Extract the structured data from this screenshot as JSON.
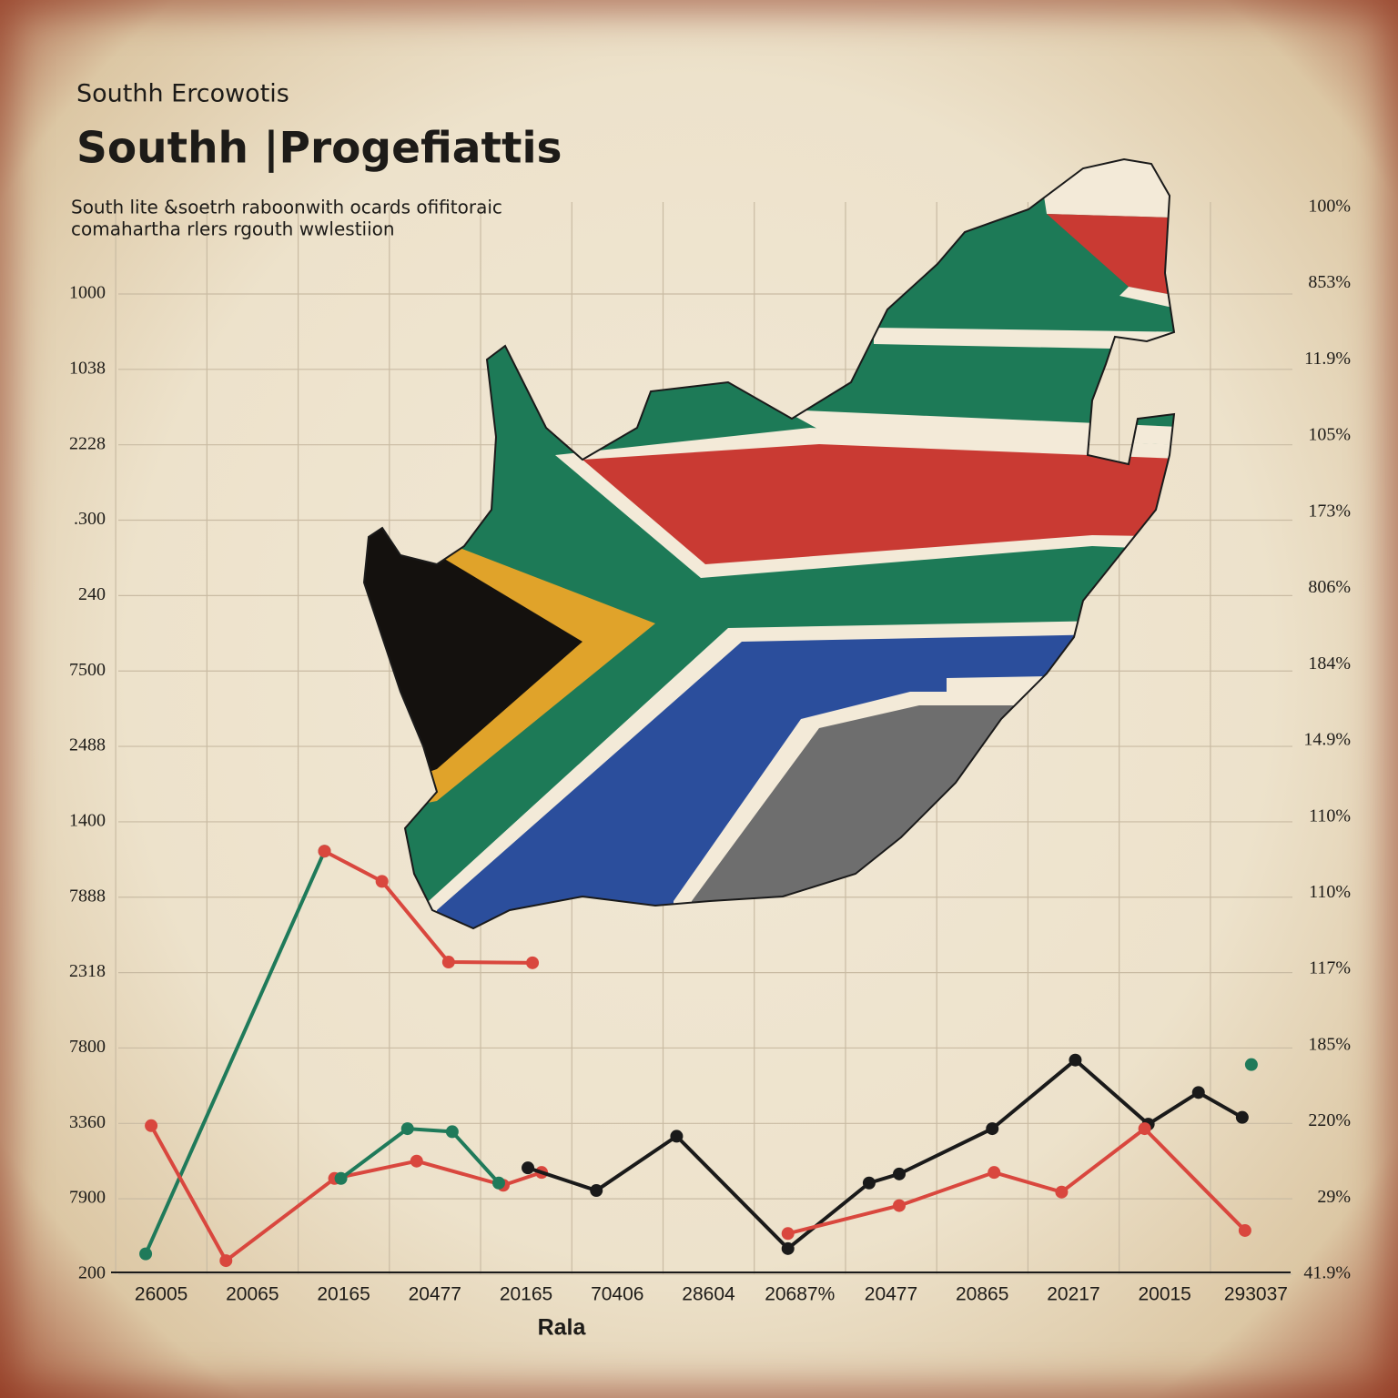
{
  "chart_data": {
    "type": "line",
    "supertitle": "Southh Ercowotis",
    "title": "Southh |Progefiattis",
    "subtitle": [
      "South lite &soetrh raboonwith ocards ofifitoraic",
      "comahartha rlers rgouth wwlestiion"
    ],
    "xlabel": "Rala",
    "xlim": [
      -0.47,
      12.4
    ],
    "xticks": [
      {
        "value": 0,
        "label": "26005"
      },
      {
        "value": 1,
        "label": "20065"
      },
      {
        "value": 2,
        "label": "20165"
      },
      {
        "value": 3,
        "label": "20477"
      },
      {
        "value": 4,
        "label": "20165"
      },
      {
        "value": 5,
        "label": "70406"
      },
      {
        "value": 6,
        "label": "28604"
      },
      {
        "value": 7,
        "label": "20687%"
      },
      {
        "value": 8,
        "label": "20477"
      },
      {
        "value": 9,
        "label": "20865"
      },
      {
        "value": 10,
        "label": "20217"
      },
      {
        "value": 11,
        "label": "20015"
      },
      {
        "value": 12,
        "label": "293037"
      }
    ],
    "ylim": [
      0,
      14.4
    ],
    "yticks": [
      {
        "value": 0,
        "label": "200"
      },
      {
        "value": 1,
        "label": "7900"
      },
      {
        "value": 2,
        "label": "3360"
      },
      {
        "value": 3,
        "label": "7800"
      },
      {
        "value": 4,
        "label": "2318"
      },
      {
        "value": 5,
        "label": "7888"
      },
      {
        "value": 6,
        "label": "1400"
      },
      {
        "value": 7,
        "label": "2488"
      },
      {
        "value": 8,
        "label": "7500"
      },
      {
        "value": 9,
        "label": "240"
      },
      {
        "value": 10,
        "label": ".300"
      },
      {
        "value": 11,
        "label": "2228"
      },
      {
        "value": 12,
        "label": "1038"
      },
      {
        "value": 13,
        "label": "1000"
      }
    ],
    "y2lim": [
      0,
      14.25
    ],
    "y2ticks": [
      {
        "value": 0,
        "label": "41.9%"
      },
      {
        "value": 1,
        "label": "29%"
      },
      {
        "value": 2,
        "label": "220%"
      },
      {
        "value": 3,
        "label": "185%"
      },
      {
        "value": 4,
        "label": "117%"
      },
      {
        "value": 5,
        "label": "110%"
      },
      {
        "value": 6,
        "label": "110%"
      },
      {
        "value": 7,
        "label": "14.9%"
      },
      {
        "value": 8,
        "label": "184%"
      },
      {
        "value": 9,
        "label": "806%"
      },
      {
        "value": 10,
        "label": "173%"
      },
      {
        "value": 11,
        "label": "105%"
      },
      {
        "value": 12,
        "label": "11.9%"
      },
      {
        "value": 13,
        "label": "853%"
      },
      {
        "value": 14,
        "label": "100%"
      }
    ],
    "grid": true,
    "series": [
      {
        "color": "#1f7a5a",
        "x": [
          -0.17,
          1.79
        ],
        "values": [
          0.27,
          5.61
        ]
      },
      {
        "color": "#d9473e",
        "x": [
          1.79,
          2.42,
          3.15,
          4.07
        ],
        "values": [
          5.61,
          5.21,
          4.14,
          4.13
        ]
      },
      {
        "color": "#d9473e",
        "x": [
          -0.11,
          0.71,
          1.9,
          2.8,
          3.75,
          4.17
        ],
        "values": [
          1.97,
          0.18,
          1.27,
          1.5,
          1.18,
          1.35
        ]
      },
      {
        "color": "#1f7a5a",
        "x": [
          1.97,
          2.7,
          3.19,
          3.7
        ],
        "values": [
          1.27,
          1.93,
          1.89,
          1.21
        ]
      },
      {
        "color": "#1a1a1a",
        "x": [
          4.02,
          4.77,
          5.65,
          6.87,
          7.76,
          8.09,
          9.11,
          10.02,
          10.82,
          11.37,
          11.85
        ],
        "values": [
          1.41,
          1.11,
          1.83,
          0.34,
          1.21,
          1.33,
          1.93,
          2.84,
          1.99,
          2.41,
          2.08
        ]
      },
      {
        "color": "#d9473e",
        "x": [
          6.87,
          8.09,
          9.13,
          9.87,
          10.78,
          11.88
        ],
        "values": [
          0.54,
          0.91,
          1.35,
          1.09,
          1.93,
          0.58
        ]
      },
      {
        "color": "#1f7a5a",
        "x": [
          11.95
        ],
        "values": [
          2.78
        ]
      }
    ]
  }
}
